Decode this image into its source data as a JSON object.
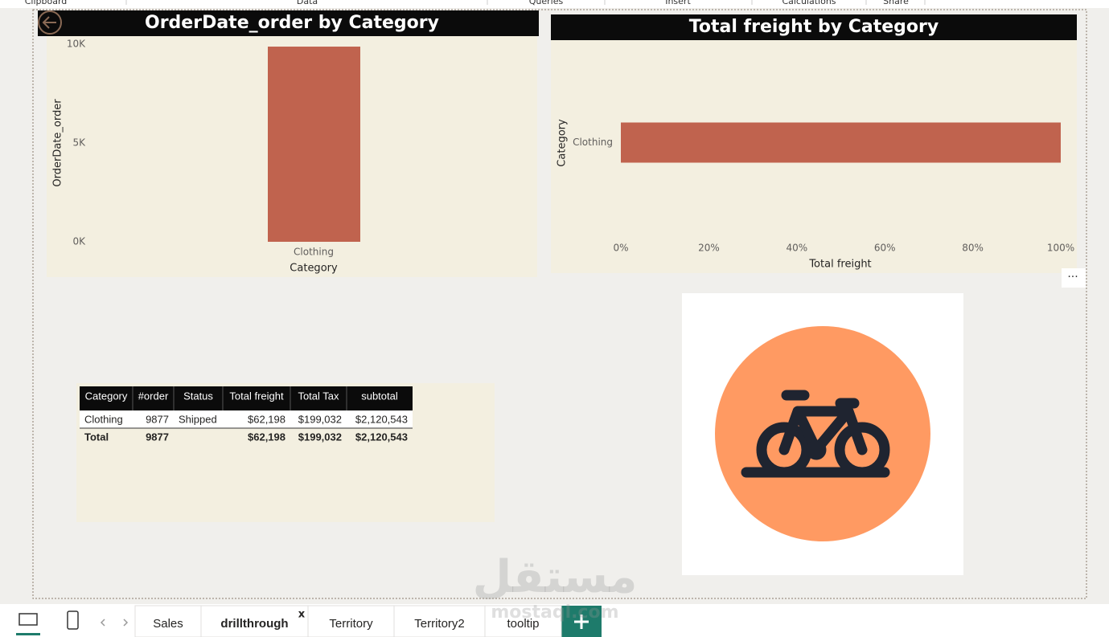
{
  "ribbon": [
    "Clipboard",
    "Data",
    "Queries",
    "Insert",
    "Calculations",
    "Share"
  ],
  "chart_data": [
    {
      "type": "bar",
      "title": "OrderDate_order by Category",
      "categories": [
        "Clothing"
      ],
      "values": [
        9877
      ],
      "color": "#c0634e",
      "ylim": [
        0,
        10000
      ],
      "yticks": [
        {
          "value": 0,
          "label": "0K"
        },
        {
          "value": 5000,
          "label": "5K"
        },
        {
          "value": 10000,
          "label": "10K"
        }
      ],
      "x_label": "Category",
      "y_label": "OrderDate_order"
    },
    {
      "type": "hbar",
      "title": "Total freight by Category",
      "categories": [
        "Clothing"
      ],
      "values": [
        100
      ],
      "color": "#c0634e",
      "xlim": [
        0,
        100
      ],
      "xticks": [
        {
          "value": 0,
          "label": "0%"
        },
        {
          "value": 20,
          "label": "20%"
        },
        {
          "value": 40,
          "label": "40%"
        },
        {
          "value": 60,
          "label": "60%"
        },
        {
          "value": 80,
          "label": "80%"
        },
        {
          "value": 100,
          "label": "100%"
        }
      ],
      "x_label": "Total freight",
      "y_label": "Category"
    }
  ],
  "table": {
    "columns": [
      "Category",
      "#order",
      "Status",
      "Total freight",
      "Total Tax",
      "subtotal"
    ],
    "rows": [
      [
        "Clothing",
        "9877",
        "Shipped",
        "$62,198",
        "$199,032",
        "$2,120,543"
      ]
    ],
    "total": [
      "Total",
      "9877",
      "",
      "$62,198",
      "$199,032",
      "$2,120,543"
    ]
  },
  "tabs": [
    "Sales",
    "drillthrough",
    "Territory",
    "Territory2",
    "tooltip"
  ],
  "tab_close": "x",
  "watermark": [
    "مستقل",
    "mostaql.com"
  ]
}
